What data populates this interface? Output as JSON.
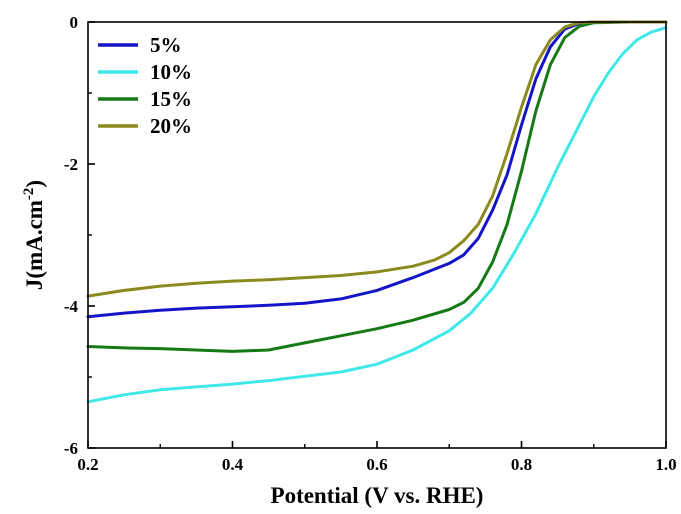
{
  "chart_data": {
    "type": "line",
    "xlabel": "Potential (V vs. RHE)",
    "ylabel_main": "J(mA.cm",
    "ylabel_sup": "-2",
    "ylabel_close": ")",
    "xlim": [
      0.2,
      1.0
    ],
    "ylim": [
      -6,
      0
    ],
    "xticks": [
      0.2,
      0.4,
      0.6,
      0.8,
      1.0
    ],
    "xtick_labels": [
      "0.2",
      "0.4",
      "0.6",
      "0.8",
      "1.0"
    ],
    "yticks": [
      -6,
      -4,
      -2,
      0
    ],
    "ytick_labels": [
      "-6",
      "-4",
      "-2",
      "0"
    ],
    "grid": false,
    "legend_position": "top-left",
    "series": [
      {
        "name": "5%",
        "color": "#1515c8",
        "x": [
          0.2,
          0.25,
          0.3,
          0.35,
          0.4,
          0.45,
          0.5,
          0.55,
          0.6,
          0.65,
          0.7,
          0.72,
          0.74,
          0.76,
          0.78,
          0.8,
          0.82,
          0.84,
          0.86,
          0.88,
          0.9,
          0.95,
          1.0
        ],
        "y": [
          -4.15,
          -4.1,
          -4.06,
          -4.03,
          -4.01,
          -3.99,
          -3.96,
          -3.9,
          -3.78,
          -3.6,
          -3.4,
          -3.28,
          -3.05,
          -2.65,
          -2.15,
          -1.45,
          -0.8,
          -0.35,
          -0.1,
          -0.02,
          0.0,
          0.0,
          0.0
        ]
      },
      {
        "name": "10%",
        "color": "#40e8e8",
        "x": [
          0.2,
          0.25,
          0.3,
          0.35,
          0.4,
          0.45,
          0.5,
          0.55,
          0.6,
          0.65,
          0.7,
          0.73,
          0.76,
          0.79,
          0.82,
          0.85,
          0.88,
          0.9,
          0.92,
          0.94,
          0.96,
          0.98,
          1.0
        ],
        "y": [
          -5.35,
          -5.25,
          -5.18,
          -5.14,
          -5.1,
          -5.05,
          -4.99,
          -4.93,
          -4.82,
          -4.62,
          -4.35,
          -4.1,
          -3.75,
          -3.25,
          -2.7,
          -2.05,
          -1.45,
          -1.05,
          -0.72,
          -0.45,
          -0.25,
          -0.14,
          -0.08
        ]
      },
      {
        "name": "15%",
        "color": "#157a15",
        "x": [
          0.2,
          0.25,
          0.3,
          0.35,
          0.4,
          0.45,
          0.5,
          0.55,
          0.6,
          0.65,
          0.7,
          0.72,
          0.74,
          0.76,
          0.78,
          0.8,
          0.82,
          0.84,
          0.86,
          0.88,
          0.9,
          0.95,
          1.0
        ],
        "y": [
          -4.57,
          -4.59,
          -4.6,
          -4.62,
          -4.64,
          -4.62,
          -4.52,
          -4.42,
          -4.32,
          -4.2,
          -4.05,
          -3.95,
          -3.75,
          -3.38,
          -2.85,
          -2.1,
          -1.25,
          -0.6,
          -0.22,
          -0.06,
          -0.01,
          0.0,
          0.0
        ]
      },
      {
        "name": "20%",
        "color": "#8a8a1e",
        "x": [
          0.2,
          0.25,
          0.3,
          0.35,
          0.4,
          0.45,
          0.5,
          0.55,
          0.6,
          0.65,
          0.68,
          0.7,
          0.72,
          0.74,
          0.76,
          0.78,
          0.8,
          0.82,
          0.84,
          0.86,
          0.88,
          0.9,
          0.95,
          1.0
        ],
        "y": [
          -3.86,
          -3.78,
          -3.72,
          -3.68,
          -3.65,
          -3.63,
          -3.6,
          -3.57,
          -3.52,
          -3.44,
          -3.35,
          -3.25,
          -3.08,
          -2.85,
          -2.45,
          -1.85,
          -1.2,
          -0.6,
          -0.25,
          -0.07,
          -0.01,
          0.0,
          0.0,
          0.0
        ]
      }
    ]
  }
}
